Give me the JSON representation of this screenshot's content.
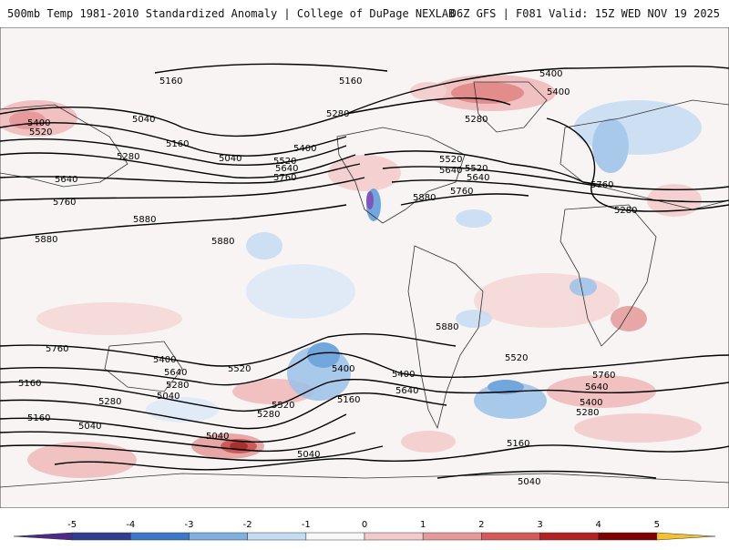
{
  "header": {
    "title_left": "500mb Temp 1981-2010 Standardized Anomaly | College of DuPage NEXLAB",
    "title_right": "06Z GFS | F081 Valid: 15Z WED NOV 19 2025"
  },
  "map": {
    "projection": "global equirectangular",
    "variable": "500mb temperature standardized anomaly",
    "contour_variable": "500mb geopotential height (dam-m)",
    "contour_labels": [
      "5160",
      "5160",
      "5040",
      "5400",
      "5520",
      "5160",
      "5280",
      "5040",
      "5640",
      "5760",
      "5880",
      "5880",
      "5880",
      "5400",
      "5520",
      "5640",
      "5760",
      "5280",
      "5400",
      "5520",
      "5640",
      "5760",
      "5880",
      "5280",
      "5400",
      "5520",
      "5640",
      "5760",
      "5280",
      "5400",
      "5760",
      "5640",
      "5520",
      "5400",
      "5160",
      "5280",
      "5040",
      "5280",
      "5160",
      "5040",
      "5640",
      "5520",
      "5400",
      "5280",
      "5160",
      "5040",
      "5880",
      "5760",
      "5640",
      "5520",
      "5400",
      "5280",
      "5160",
      "5040",
      "5040"
    ]
  },
  "colorbar": {
    "tick_labels": [
      "-5",
      "-4",
      "-3",
      "-2",
      "-1",
      "0",
      "1",
      "2",
      "3",
      "4",
      "5"
    ],
    "colors": [
      "#4b2a8a",
      "#2e3f8f",
      "#3c78c8",
      "#7fb0e0",
      "#c6dcf2",
      "#f7f7f7",
      "#f3c9c9",
      "#e59a9a",
      "#d45a5a",
      "#b22222",
      "#7f0000",
      "#f2c230"
    ]
  }
}
